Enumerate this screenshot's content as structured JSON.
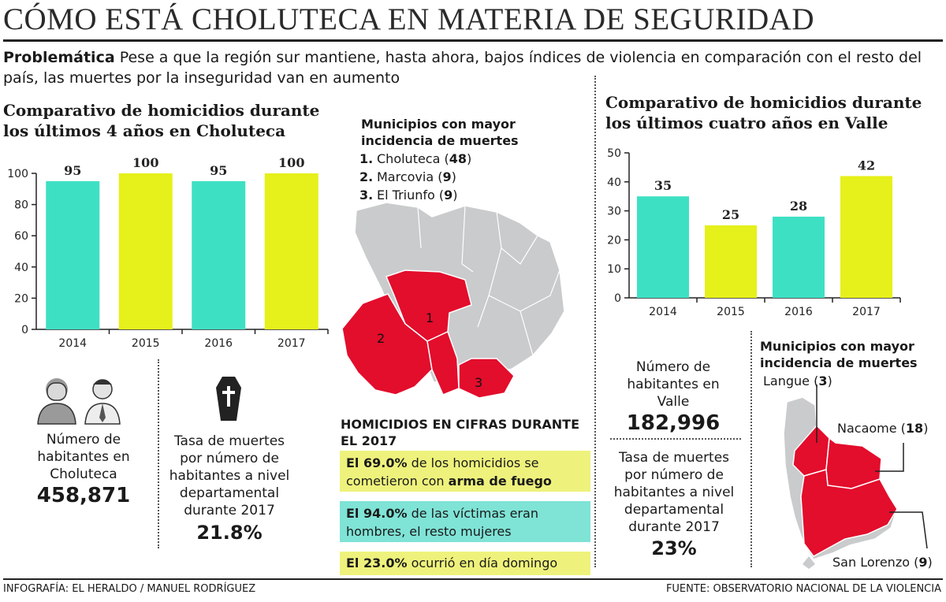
{
  "title": "CÓMO ESTÁ CHOLUTECA EN MATERIA DE SEGURIDAD",
  "intro": {
    "label": "Problemática",
    "text": " Pese a que la región sur mantiene, hasta ahora, bajos índices de violencia en comparación con el resto del país, las muertes por la inseguridad van en aumento"
  },
  "choluteca": {
    "chart_title": "Comparativo de homicidios durante los últimos 4 años en Choluteca",
    "municipios_title": "Municipios con mayor incidencia de muertes",
    "municipios": [
      {
        "num": "1.",
        "name": "Choluteca",
        "value": "48"
      },
      {
        "num": "2.",
        "name": "Marcovia",
        "value": "9"
      },
      {
        "num": "3.",
        "name": "El Triunfo",
        "value": "9"
      }
    ],
    "map_labels": [
      "1",
      "2",
      "3"
    ],
    "poblacion_label": "Número de habitantes en Choluteca",
    "poblacion_value": "458,871",
    "tasa_label": "Tasa de muertes por número de habitantes a nivel departamental durante 2017",
    "tasa_value": "21.8%"
  },
  "cifras": {
    "title": "HOMICIDIOS EN CIFRAS DURANTE EL 2017",
    "items": [
      {
        "bold": "El 69.0%",
        "text": " de los homicidios se cometieron con ",
        "bold2": "arma de fuego",
        "color": "#eef27c"
      },
      {
        "bold": "El 94.0%",
        "text": " de las víctimas eran hombres, el resto mujeres",
        "bold2": "",
        "color": "#7fe3d6"
      },
      {
        "bold": "El 23.0%",
        "text": " ocurrió en día domingo",
        "bold2": "",
        "color": "#eef27c"
      }
    ]
  },
  "valle": {
    "chart_title": "Comparativo de homicidios durante los últimos cuatro años en Valle",
    "poblacion_label": "Número de habitantes en Valle",
    "poblacion_value": "182,996",
    "tasa_label": "Tasa de muertes por número de habitantes a nivel departamental durante 2017",
    "tasa_value": "23%",
    "municipios_title": "Municipios con mayor incidencia de muertes",
    "municipios": [
      {
        "name": "Langue",
        "value": "3"
      },
      {
        "name": "Nacaome",
        "value": "18"
      },
      {
        "name": "San Lorenzo",
        "value": "9"
      }
    ]
  },
  "footer": {
    "left": "INFOGRAFÍA: EL HERALDO / MANUEL RODRÍGUEZ",
    "right": "FUENTE: OBSERVATORIO NACIONAL DE LA VIOLENCIA"
  },
  "colors": {
    "teal": "#3ee0c4",
    "yellow": "#e6f01a",
    "red": "#e30d2c",
    "grey": "#c9cbcc"
  },
  "chart_data": [
    {
      "type": "bar",
      "title": "Comparativo de homicidios durante los últimos 4 años en Choluteca",
      "categories": [
        "2014",
        "2015",
        "2016",
        "2017"
      ],
      "values": [
        95,
        100,
        95,
        100
      ],
      "yticks": [
        0,
        20,
        40,
        60,
        80,
        100
      ],
      "ylim": [
        0,
        100
      ],
      "xlabel": "",
      "ylabel": ""
    },
    {
      "type": "bar",
      "title": "Comparativo de homicidios durante los últimos cuatro años en Valle",
      "categories": [
        "2014",
        "2015",
        "2016",
        "2017"
      ],
      "values": [
        35,
        25,
        28,
        42
      ],
      "yticks": [
        0,
        10,
        20,
        30,
        40,
        50
      ],
      "ylim": [
        0,
        50
      ],
      "xlabel": "",
      "ylabel": ""
    }
  ]
}
